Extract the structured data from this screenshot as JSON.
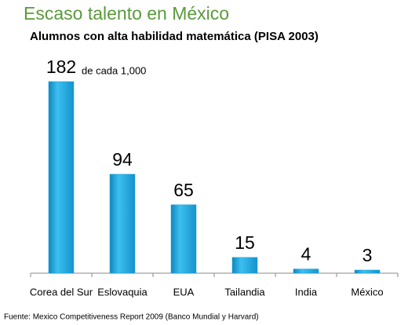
{
  "chart_data": {
    "type": "bar",
    "title": "Escaso talento en México",
    "subtitle": "Alumnos con alta habilidad matemática (PISA 2003)",
    "annotation": "de cada 1,000",
    "source": "Fuente: Mexico Competitiveness Report 2009 (Banco Mundial y Harvard)",
    "categories": [
      "Corea del Sur",
      "Eslovaquia",
      "EUA",
      "Tailandia",
      "India",
      "México"
    ],
    "values": [
      182,
      94,
      65,
      15,
      4,
      3
    ],
    "color": "#1ba1dc"
  }
}
